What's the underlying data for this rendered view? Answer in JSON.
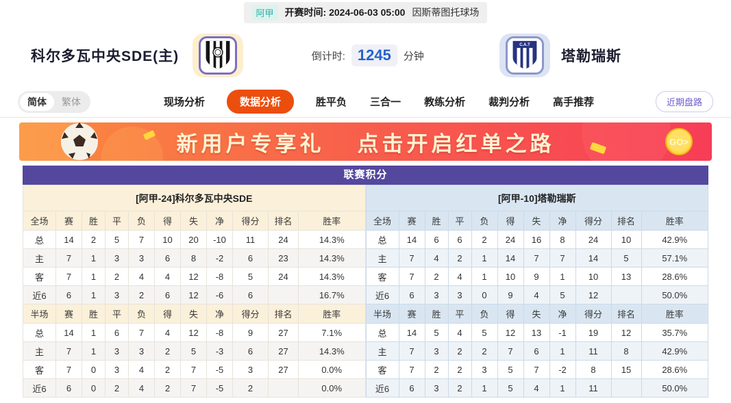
{
  "topbar": {
    "league_badge": "阿甲",
    "kickoff": "开赛时间: 2024-06-03 05:00",
    "venue": "因斯蒂图托球场"
  },
  "header": {
    "home_name": "科尔多瓦中央SDE(主)",
    "away_name": "塔勒瑞斯",
    "countdown_label": "倒计时:",
    "countdown_value": "1245",
    "countdown_unit": "分钟",
    "away_logo_text": "C.A.T"
  },
  "nav": {
    "lang": [
      {
        "label": "简体",
        "active": true
      },
      {
        "label": "繁体",
        "active": false
      }
    ],
    "items": [
      {
        "label": "现场分析",
        "active": false
      },
      {
        "label": "数据分析",
        "active": true
      },
      {
        "label": "胜平负",
        "active": false
      },
      {
        "label": "三合一",
        "active": false
      },
      {
        "label": "教练分析",
        "active": false
      },
      {
        "label": "裁判分析",
        "active": false
      },
      {
        "label": "高手推荐",
        "active": false
      }
    ],
    "recent_button": "近期盘路"
  },
  "banner": {
    "text_left": "新用户专享礼",
    "text_right": "点击开启红单之路",
    "go_label": "GO>"
  },
  "league_table": {
    "title": "联赛积分",
    "column_headers": [
      "赛",
      "胜",
      "平",
      "负",
      "得",
      "失",
      "净",
      "得分",
      "排名",
      "胜率"
    ],
    "sides": [
      {
        "team_header": "[阿甲-24]科尔多瓦中央SDE",
        "theme": "home",
        "sections": [
          {
            "scope": "全场",
            "rows": [
              {
                "label": "总",
                "values": [
                  "14",
                  "2",
                  "5",
                  "7",
                  "10",
                  "20",
                  "-10",
                  "11",
                  "24",
                  "14.3%"
                ]
              },
              {
                "label": "主",
                "values": [
                  "7",
                  "1",
                  "3",
                  "3",
                  "6",
                  "8",
                  "-2",
                  "6",
                  "23",
                  "14.3%"
                ]
              },
              {
                "label": "客",
                "values": [
                  "7",
                  "1",
                  "2",
                  "4",
                  "4",
                  "12",
                  "-8",
                  "5",
                  "24",
                  "14.3%"
                ]
              },
              {
                "label": "近6",
                "values": [
                  "6",
                  "1",
                  "3",
                  "2",
                  "6",
                  "12",
                  "-6",
                  "6",
                  "",
                  "16.7%"
                ]
              }
            ]
          },
          {
            "scope": "半场",
            "rows": [
              {
                "label": "总",
                "values": [
                  "14",
                  "1",
                  "6",
                  "7",
                  "4",
                  "12",
                  "-8",
                  "9",
                  "27",
                  "7.1%"
                ]
              },
              {
                "label": "主",
                "values": [
                  "7",
                  "1",
                  "3",
                  "3",
                  "2",
                  "5",
                  "-3",
                  "6",
                  "27",
                  "14.3%"
                ]
              },
              {
                "label": "客",
                "values": [
                  "7",
                  "0",
                  "3",
                  "4",
                  "2",
                  "7",
                  "-5",
                  "3",
                  "27",
                  "0.0%"
                ]
              },
              {
                "label": "近6",
                "values": [
                  "6",
                  "0",
                  "2",
                  "4",
                  "2",
                  "7",
                  "-5",
                  "2",
                  "",
                  "0.0%"
                ]
              }
            ]
          }
        ]
      },
      {
        "team_header": "[阿甲-10]塔勒瑞斯",
        "theme": "away",
        "sections": [
          {
            "scope": "全场",
            "rows": [
              {
                "label": "总",
                "values": [
                  "14",
                  "6",
                  "6",
                  "2",
                  "24",
                  "16",
                  "8",
                  "24",
                  "10",
                  "42.9%"
                ]
              },
              {
                "label": "主",
                "values": [
                  "7",
                  "4",
                  "2",
                  "1",
                  "14",
                  "7",
                  "7",
                  "14",
                  "5",
                  "57.1%"
                ]
              },
              {
                "label": "客",
                "values": [
                  "7",
                  "2",
                  "4",
                  "1",
                  "10",
                  "9",
                  "1",
                  "10",
                  "13",
                  "28.6%"
                ]
              },
              {
                "label": "近6",
                "values": [
                  "6",
                  "3",
                  "3",
                  "0",
                  "9",
                  "4",
                  "5",
                  "12",
                  "",
                  "50.0%"
                ]
              }
            ]
          },
          {
            "scope": "半场",
            "rows": [
              {
                "label": "总",
                "values": [
                  "14",
                  "5",
                  "4",
                  "5",
                  "12",
                  "13",
                  "-1",
                  "19",
                  "12",
                  "35.7%"
                ]
              },
              {
                "label": "主",
                "values": [
                  "7",
                  "3",
                  "2",
                  "2",
                  "7",
                  "6",
                  "1",
                  "11",
                  "8",
                  "42.9%"
                ]
              },
              {
                "label": "客",
                "values": [
                  "7",
                  "2",
                  "2",
                  "3",
                  "5",
                  "7",
                  "-2",
                  "8",
                  "15",
                  "28.6%"
                ]
              },
              {
                "label": "近6",
                "values": [
                  "6",
                  "3",
                  "2",
                  "1",
                  "5",
                  "4",
                  "1",
                  "11",
                  "",
                  "50.0%"
                ]
              }
            ]
          }
        ]
      }
    ]
  },
  "colors": {
    "accent_purple": "#54489e",
    "active_nav_orange": "#ec4e0d",
    "countdown_blue": "#2463cf",
    "badge_teal": "#2ab1a5",
    "home_theme_bg": "#fbf0da",
    "away_theme_bg": "#d9e6f2",
    "banner_from": "#fa8c3e",
    "banner_to": "#f73d56"
  }
}
